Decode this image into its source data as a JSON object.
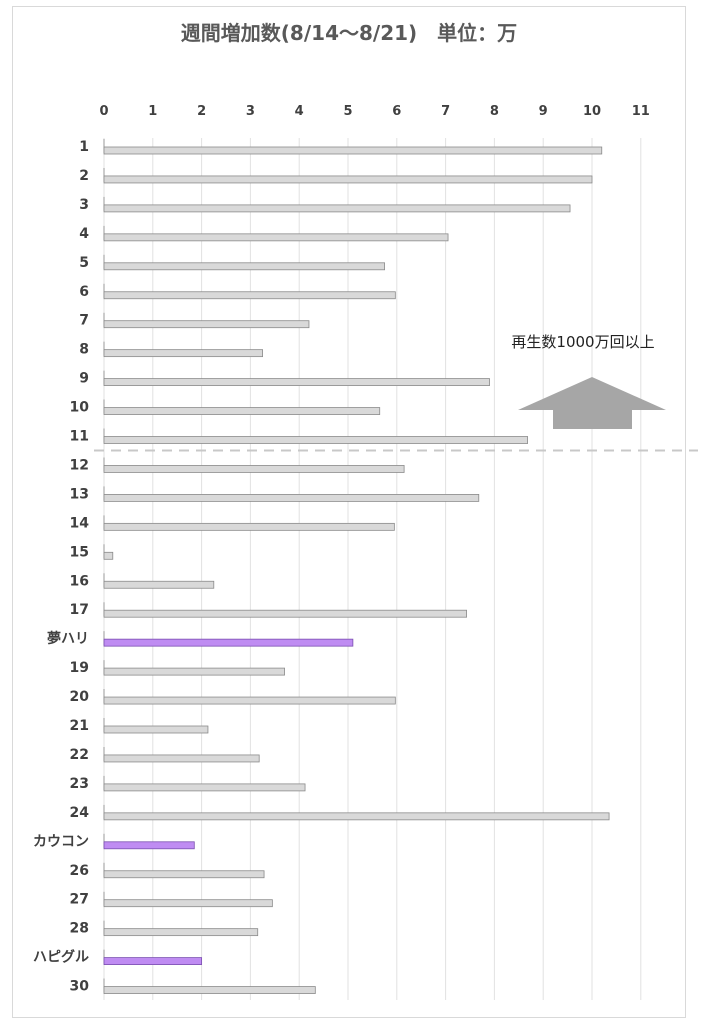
{
  "chart_data": {
    "type": "bar",
    "orientation": "horizontal",
    "title": "週間増加数(8/14～8/21)　単位：万",
    "xlim": [
      0,
      11
    ],
    "x_ticks": [
      "0",
      "1",
      "2",
      "3",
      "4",
      "5",
      "6",
      "7",
      "8",
      "9",
      "10",
      "11"
    ],
    "categories": [
      "1",
      "2",
      "3",
      "4",
      "5",
      "6",
      "7",
      "8",
      "9",
      "10",
      "11",
      "12",
      "13",
      "14",
      "15",
      "16",
      "17",
      "夢ハリ",
      "19",
      "20",
      "21",
      "22",
      "23",
      "24",
      "カウコン",
      "26",
      "27",
      "28",
      "ハピグル",
      "30"
    ],
    "values": [
      10.2,
      10.0,
      9.55,
      7.05,
      5.75,
      5.97,
      4.2,
      3.25,
      7.9,
      5.65,
      8.68,
      6.15,
      7.68,
      5.95,
      0.18,
      2.25,
      7.43,
      5.1,
      3.7,
      5.97,
      2.13,
      3.18,
      4.12,
      10.35,
      1.85,
      3.28,
      3.45,
      3.15,
      2.0,
      4.33
    ],
    "highlight_categories": [
      "夢ハリ",
      "カウコン",
      "ハピグル"
    ],
    "colors": {
      "bar_fill": "#d9d9d9",
      "bar_stroke": "#8a8a8a",
      "highlight_fill": "#bf8cf2",
      "highlight_stroke": "#7a4fb0",
      "grid": "#e2e2e2",
      "divider": "#c8c8c8",
      "arrow": "#a6a6a6"
    },
    "divider_after_category": "11",
    "annotation": "再生数1000万回以上",
    "annotation_icon": "up-arrow-icon",
    "grid": true,
    "legend": "none"
  }
}
